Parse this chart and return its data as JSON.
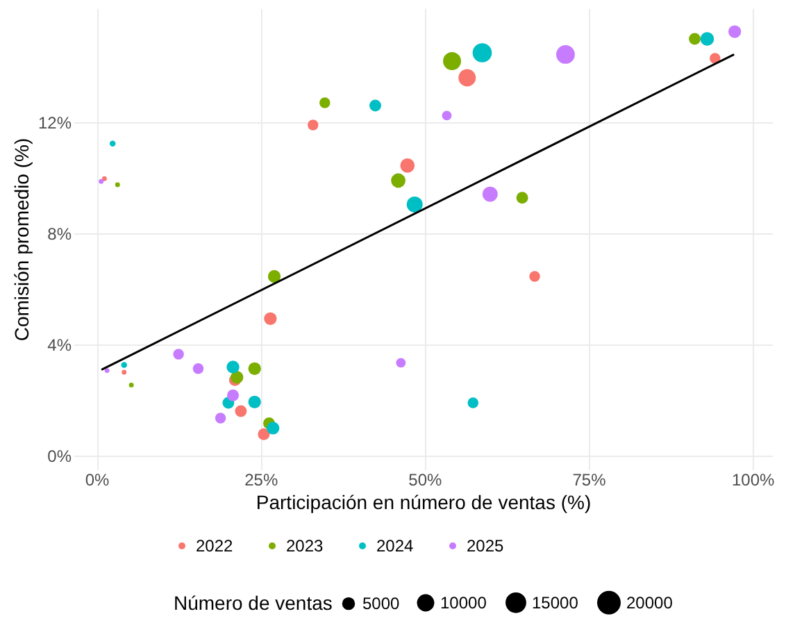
{
  "chart_data": {
    "type": "bubble",
    "xlabel": "Participación en número de ventas (%)",
    "ylabel": "Comisión promedio (%)",
    "legend_title": "Número de ventas",
    "xlim": [
      -3.5,
      103
    ],
    "ylim": [
      -0.5,
      16.1
    ],
    "xticks": [
      {
        "value": 0,
        "label": "0%"
      },
      {
        "value": 25,
        "label": "25%"
      },
      {
        "value": 50,
        "label": "50%"
      },
      {
        "value": 75,
        "label": "75%"
      },
      {
        "value": 100,
        "label": "100%"
      }
    ],
    "yticks": [
      {
        "value": 0,
        "label": "0%"
      },
      {
        "value": 4,
        "label": "4%"
      },
      {
        "value": 8,
        "label": "8%"
      },
      {
        "value": 12,
        "label": "12%"
      }
    ],
    "size_legend": [
      5000,
      10000,
      15000,
      20000
    ],
    "grid": true,
    "legend": "bottom",
    "marker": "circle",
    "series": [
      {
        "name": "2022",
        "color": "#f8766d",
        "x": [
          1.2,
          33.0,
          47.4,
          56.5,
          94.3,
          26.5,
          4.2,
          21.1,
          22.0,
          25.5,
          66.8
        ],
        "values": [
          9.97,
          11.9,
          10.44,
          13.6,
          14.3,
          4.93,
          3.0,
          2.72,
          1.6,
          0.77,
          6.45
        ],
        "sizes": [
          1000,
          5000,
          9000,
          13000,
          5000,
          7000,
          1000,
          6000,
          6000,
          6000,
          5000
        ]
      },
      {
        "name": "2023",
        "color": "#7cae00",
        "x": [
          3.2,
          34.8,
          46.0,
          54.2,
          64.9,
          91.2,
          27.1,
          5.3,
          21.4,
          24.1,
          26.3
        ],
        "values": [
          9.75,
          12.7,
          9.9,
          14.2,
          9.28,
          15.0,
          6.45,
          2.54,
          2.82,
          3.13,
          1.16
        ],
        "sizes": [
          1000,
          5000,
          9000,
          14000,
          6000,
          6000,
          7000,
          1000,
          7000,
          7000,
          6000
        ]
      },
      {
        "name": "2024",
        "color": "#00bfc4",
        "x": [
          2.45,
          42.5,
          48.5,
          58.8,
          93.1,
          4.2,
          20.8,
          20.1,
          24.1,
          26.9,
          57.4
        ],
        "values": [
          11.23,
          12.6,
          9.04,
          14.5,
          15.0,
          3.26,
          3.19,
          1.9,
          1.93,
          0.99,
          1.9
        ],
        "sizes": [
          1500,
          6000,
          11000,
          16000,
          8000,
          1500,
          7000,
          6000,
          7000,
          7000,
          5000
        ]
      },
      {
        "name": "2025",
        "color": "#c77cff",
        "x": [
          0.7,
          53.4,
          71.5,
          60.0,
          97.3,
          12.5,
          15.5,
          1.6,
          20.8,
          18.9,
          46.4
        ],
        "values": [
          9.87,
          12.24,
          14.44,
          9.41,
          15.26,
          3.65,
          3.13,
          3.06,
          2.17,
          1.35,
          3.34
        ],
        "sizes": [
          1000,
          4000,
          15000,
          10000,
          7000,
          5000,
          5000,
          1000,
          6000,
          5000,
          4000
        ]
      },
      {
        "type": "line",
        "marker": "none",
        "color": "#000000",
        "x": [
          0.75,
          97.2
        ],
        "values": [
          3.09,
          14.44
        ]
      }
    ]
  }
}
